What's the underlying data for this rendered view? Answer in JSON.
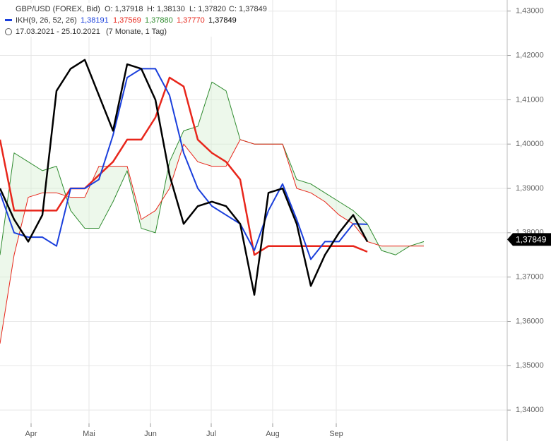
{
  "chart_data": {
    "type": "line",
    "legend": {
      "instrument": "GBP/USD (FOREX, Bid)",
      "open": "O: 1,37918",
      "high": "H: 1,38130",
      "low": "L: 1,37820",
      "close": "C: 1,37849",
      "indicator": "IKH(9, 26, 52, 26)",
      "indicator_values": [
        "1,38191",
        "1,37569",
        "1,37880",
        "1,37770",
        "1,37849"
      ],
      "period": "17.03.2021 - 25.10.2021",
      "duration": "(7 Monate, 1 Tag)"
    },
    "last_price": {
      "value": 1.37849,
      "label": "1,37849"
    },
    "xlim": [
      0,
      35.9
    ],
    "xticks": [
      {
        "value": 2.2,
        "label": "Apr"
      },
      {
        "value": 6.3,
        "label": "Mai"
      },
      {
        "value": 10.65,
        "label": "Jun"
      },
      {
        "value": 14.95,
        "label": "Jul"
      },
      {
        "value": 19.3,
        "label": "Aug"
      },
      {
        "value": 23.8,
        "label": "Sep"
      }
    ],
    "ylim": [
      1.337,
      1.4325
    ],
    "yticks": [
      {
        "value": 1.34,
        "label": "1,34000"
      },
      {
        "value": 1.35,
        "label": "1,35000"
      },
      {
        "value": 1.36,
        "label": "1,36000"
      },
      {
        "value": 1.37,
        "label": "1,37000"
      },
      {
        "value": 1.38,
        "label": "1,38000"
      },
      {
        "value": 1.39,
        "label": "1,39000"
      },
      {
        "value": 1.4,
        "label": "1,40000"
      },
      {
        "value": 1.41,
        "label": "1,41000"
      },
      {
        "value": 1.42,
        "label": "1,42000"
      },
      {
        "value": 1.43,
        "label": "1,43000"
      }
    ],
    "grid": true,
    "series": [
      {
        "color": "#2e8b2e",
        "width": 1,
        "values": [
          1.375,
          1.398,
          1.396,
          1.394,
          1.395,
          1.385,
          1.381,
          1.381,
          1.387,
          1.394,
          1.381,
          1.38,
          1.396,
          1.403,
          1.404,
          1.414,
          1.412,
          1.401,
          1.4,
          1.4,
          1.4,
          1.392,
          1.391,
          1.389,
          1.387,
          1.385,
          1.382,
          1.376,
          1.375,
          1.377,
          1.378
        ]
      },
      {
        "color": "#e8261b",
        "width": 1,
        "values": [
          1.355,
          1.375,
          1.388,
          1.389,
          1.389,
          1.388,
          1.388,
          1.395,
          1.395,
          1.395,
          1.383,
          1.385,
          1.39,
          1.4,
          1.396,
          1.395,
          1.395,
          1.401,
          1.4,
          1.4,
          1.4,
          1.39,
          1.389,
          1.387,
          1.384,
          1.382,
          1.378,
          1.377,
          1.377,
          1.377,
          1.377
        ]
      },
      {
        "color": "#e8261b",
        "width": 2.5,
        "values": [
          1.401,
          1.385,
          1.385,
          1.385,
          1.385,
          1.39,
          1.39,
          1.393,
          1.396,
          1.401,
          1.401,
          1.406,
          1.415,
          1.413,
          1.401,
          1.398,
          1.396,
          1.392,
          1.375,
          1.377,
          1.377,
          1.377,
          1.377,
          1.377,
          1.377,
          1.377,
          1.3757,
          null,
          null,
          null,
          null
        ]
      },
      {
        "color": "#1a3fdc",
        "width": 2,
        "values": [
          1.389,
          1.38,
          1.379,
          1.379,
          1.377,
          1.39,
          1.39,
          1.392,
          1.402,
          1.415,
          1.417,
          1.417,
          1.411,
          1.398,
          1.39,
          1.386,
          1.384,
          1.382,
          1.376,
          1.385,
          1.391,
          1.383,
          1.374,
          1.378,
          1.378,
          1.382,
          1.3819,
          null,
          null,
          null,
          null
        ]
      },
      {
        "color": "#000000",
        "width": 2.5,
        "values": [
          1.39,
          1.383,
          1.378,
          1.384,
          1.412,
          1.417,
          1.419,
          1.411,
          1.403,
          1.418,
          1.417,
          1.41,
          1.393,
          1.382,
          1.386,
          1.387,
          1.386,
          1.382,
          1.366,
          1.389,
          1.39,
          1.382,
          1.368,
          1.375,
          1.38,
          1.384,
          1.378,
          null,
          null,
          null,
          null
        ]
      }
    ]
  }
}
